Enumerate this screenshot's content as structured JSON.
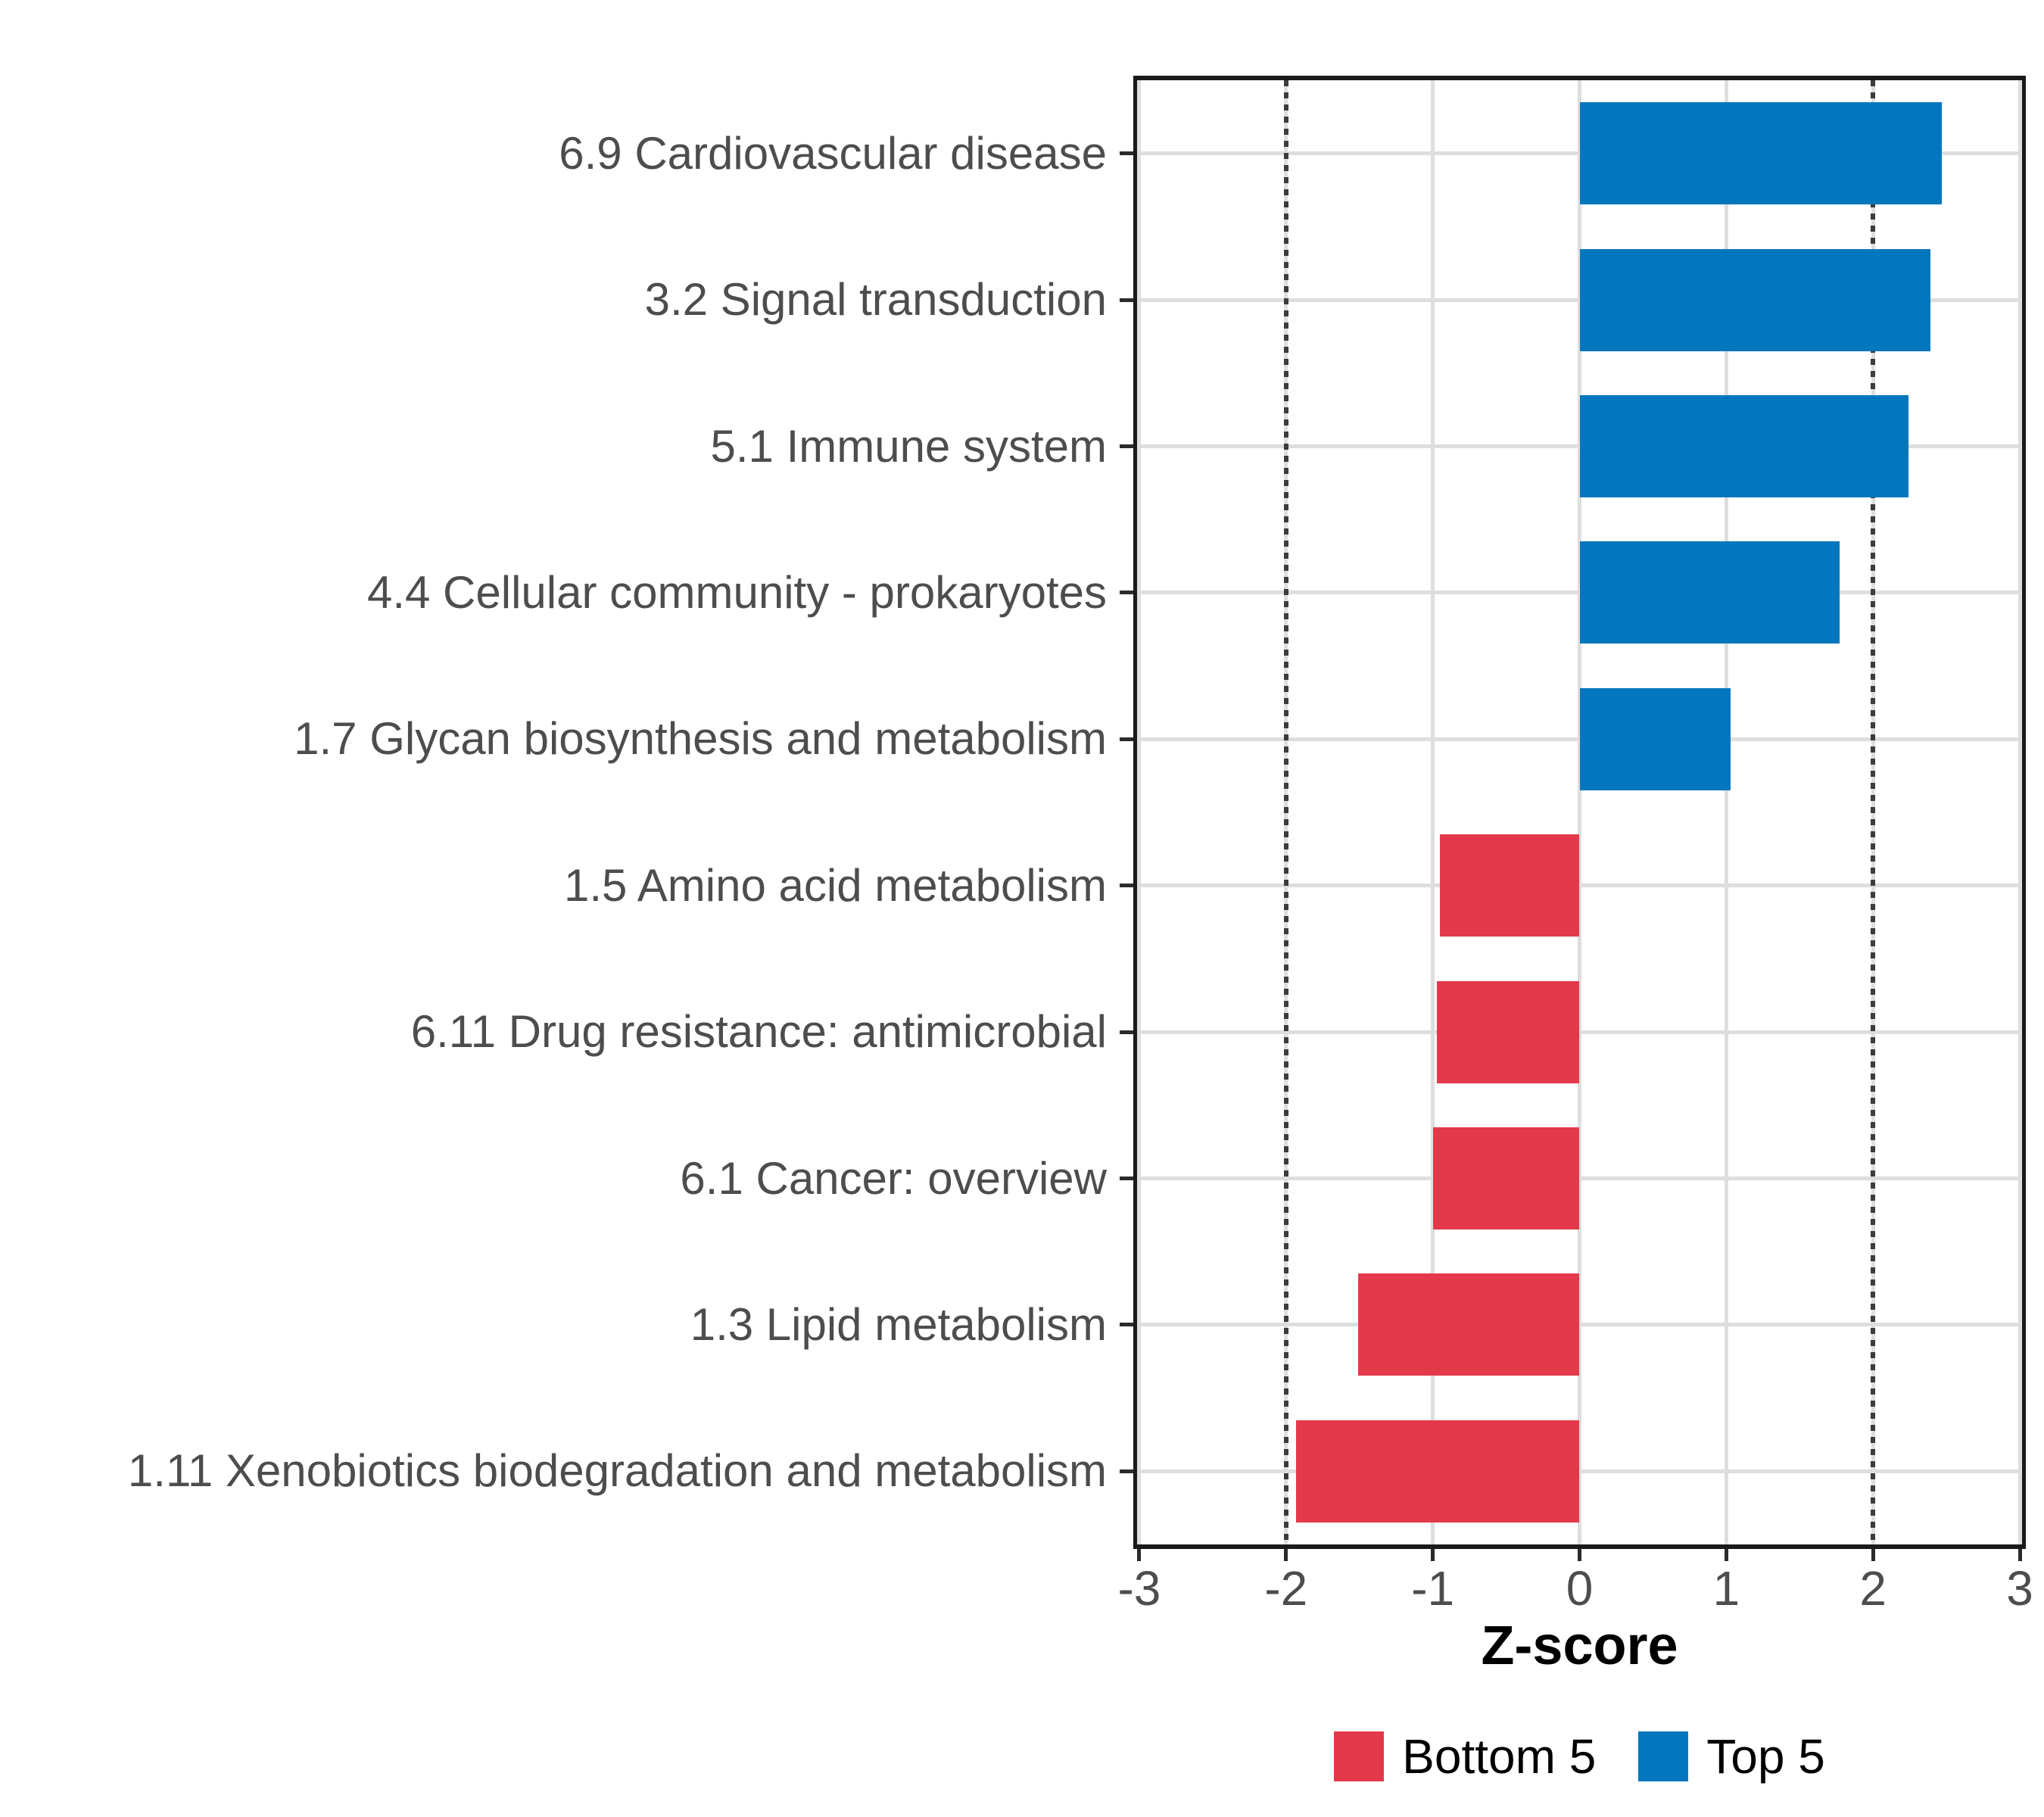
{
  "chart_data": {
    "type": "bar",
    "orientation": "horizontal",
    "title": "",
    "xlabel": "Z-score",
    "ylabel": "",
    "xlim": [
      -3.01,
      3.01
    ],
    "x_ticks": [
      -3,
      -2,
      -1,
      0,
      1,
      2,
      3
    ],
    "reference_lines": [
      -2,
      2
    ],
    "grid": true,
    "legend_position": "bottom",
    "categories": [
      "6.9 Cardiovascular disease",
      "3.2 Signal transduction",
      "5.1 Immune system",
      "4.4 Cellular community - prokaryotes",
      "1.7 Glycan biosynthesis and metabolism",
      "1.5 Amino acid metabolism",
      "6.11 Drug resistance: antimicrobial",
      "6.1 Cancer: overview",
      "1.3 Lipid metabolism",
      "1.11 Xenobiotics biodegradation and metabolism"
    ],
    "values": [
      2.47,
      2.39,
      2.24,
      1.77,
      1.03,
      -0.95,
      -0.97,
      -1.0,
      -1.51,
      -1.93
    ],
    "groups": [
      "Top 5",
      "Top 5",
      "Top 5",
      "Top 5",
      "Top 5",
      "Bottom 5",
      "Bottom 5",
      "Bottom 5",
      "Bottom 5",
      "Bottom 5"
    ]
  },
  "legend": {
    "items": [
      {
        "label": "Bottom 5",
        "color": "#E4394B"
      },
      {
        "label": "Top 5",
        "color": "#0277BD"
      }
    ]
  },
  "colors": {
    "top5_bar": "#0277BD",
    "bottom5_bar": "#E4394B",
    "gridline": "#DEDEDE",
    "reference_line": "#3C3C3C",
    "panel_border": "#1A1A1A",
    "tick_mark": "#2B2B2B",
    "axis_text": "#4D4D4D",
    "title_text": "#000000"
  }
}
